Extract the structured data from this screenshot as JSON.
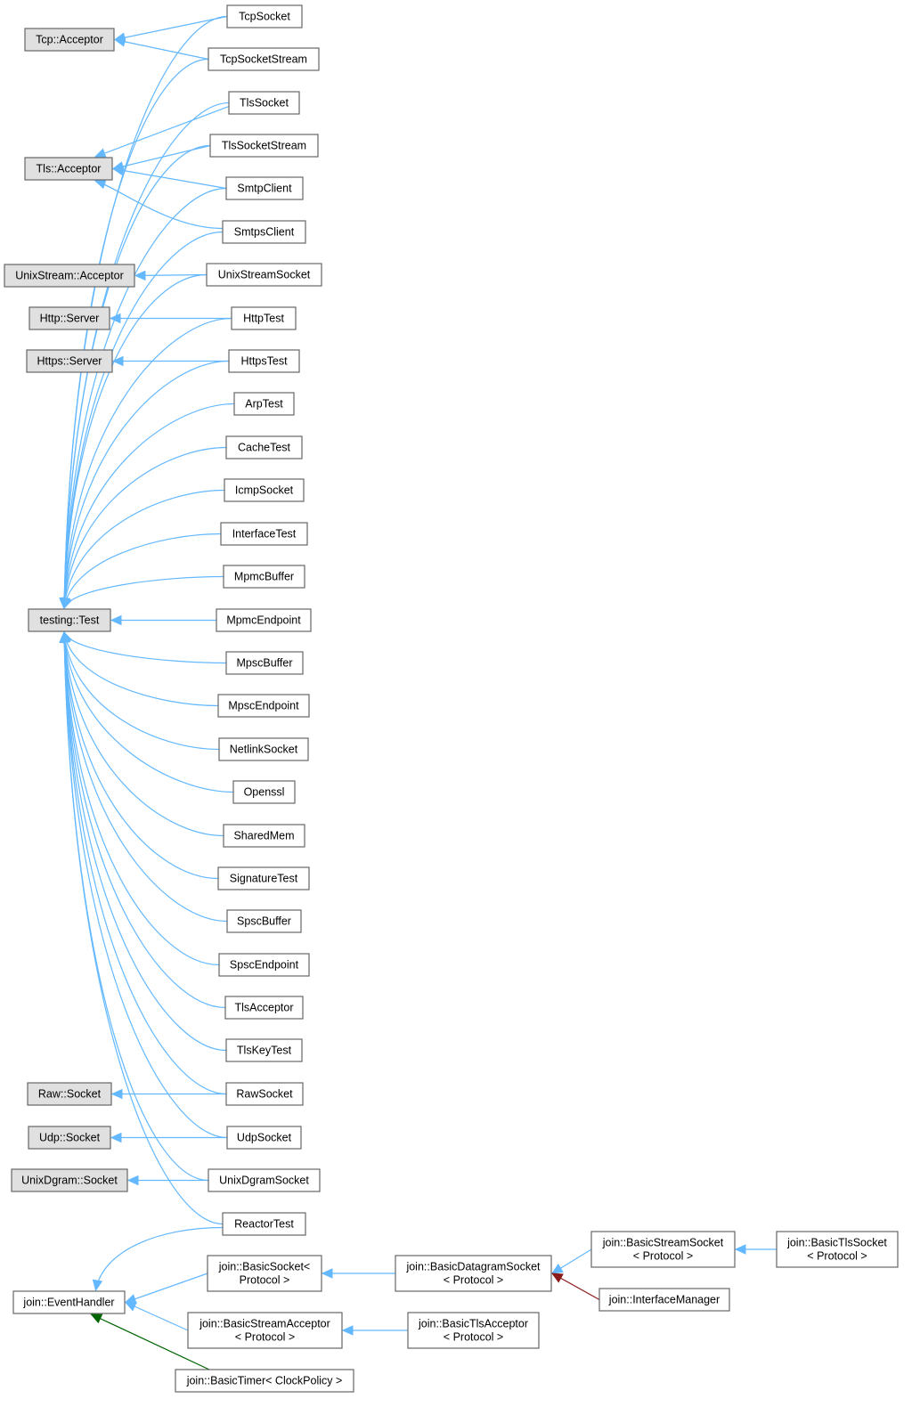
{
  "colors": {
    "external_fill": "#e0e0e0",
    "class_fill": "#ffffff",
    "border": "#666666",
    "inheritance_edge": "#63b8ff",
    "usage_edge": "#8b1a1a",
    "template_edge": "#006400"
  },
  "nodes": [
    {
      "id": "tcp_acceptor",
      "lines": [
        "Tcp::Acceptor"
      ],
      "external": true
    },
    {
      "id": "tls_acceptor",
      "lines": [
        "Tls::Acceptor"
      ],
      "external": true
    },
    {
      "id": "unixstream_acceptor",
      "lines": [
        "UnixStream::Acceptor"
      ],
      "external": true
    },
    {
      "id": "http_server",
      "lines": [
        "Http::Server"
      ],
      "external": true
    },
    {
      "id": "https_server",
      "lines": [
        "Https::Server"
      ],
      "external": true
    },
    {
      "id": "testing_test",
      "lines": [
        "testing::Test"
      ],
      "external": true
    },
    {
      "id": "raw_socket",
      "lines": [
        "Raw::Socket"
      ],
      "external": true
    },
    {
      "id": "udp_socket",
      "lines": [
        "Udp::Socket"
      ],
      "external": true
    },
    {
      "id": "unixdgram_socket",
      "lines": [
        "UnixDgram::Socket"
      ],
      "external": true
    },
    {
      "id": "event_handler",
      "lines": [
        "join::EventHandler"
      ],
      "external": false
    },
    {
      "id": "TcpSocket",
      "lines": [
        "TcpSocket"
      ],
      "external": false
    },
    {
      "id": "TcpSocketStream",
      "lines": [
        "TcpSocketStream"
      ],
      "external": false
    },
    {
      "id": "TlsSocket",
      "lines": [
        "TlsSocket"
      ],
      "external": false
    },
    {
      "id": "TlsSocketStream",
      "lines": [
        "TlsSocketStream"
      ],
      "external": false
    },
    {
      "id": "SmtpClient",
      "lines": [
        "SmtpClient"
      ],
      "external": false
    },
    {
      "id": "SmtpsClient",
      "lines": [
        "SmtpsClient"
      ],
      "external": false
    },
    {
      "id": "UnixStreamSocket",
      "lines": [
        "UnixStreamSocket"
      ],
      "external": false
    },
    {
      "id": "HttpTest",
      "lines": [
        "HttpTest"
      ],
      "external": false
    },
    {
      "id": "HttpsTest",
      "lines": [
        "HttpsTest"
      ],
      "external": false
    },
    {
      "id": "ArpTest",
      "lines": [
        "ArpTest"
      ],
      "external": false
    },
    {
      "id": "CacheTest",
      "lines": [
        "CacheTest"
      ],
      "external": false
    },
    {
      "id": "IcmpSocket",
      "lines": [
        "IcmpSocket"
      ],
      "external": false
    },
    {
      "id": "InterfaceTest",
      "lines": [
        "InterfaceTest"
      ],
      "external": false
    },
    {
      "id": "MpmcBuffer",
      "lines": [
        "MpmcBuffer"
      ],
      "external": false
    },
    {
      "id": "MpmcEndpoint",
      "lines": [
        "MpmcEndpoint"
      ],
      "external": false
    },
    {
      "id": "MpscBuffer",
      "lines": [
        "MpscBuffer"
      ],
      "external": false
    },
    {
      "id": "MpscEndpoint",
      "lines": [
        "MpscEndpoint"
      ],
      "external": false
    },
    {
      "id": "NetlinkSocket",
      "lines": [
        "NetlinkSocket"
      ],
      "external": false
    },
    {
      "id": "Openssl",
      "lines": [
        "Openssl"
      ],
      "external": false
    },
    {
      "id": "SharedMem",
      "lines": [
        "SharedMem"
      ],
      "external": false
    },
    {
      "id": "SignatureTest",
      "lines": [
        "SignatureTest"
      ],
      "external": false
    },
    {
      "id": "SpscBuffer",
      "lines": [
        "SpscBuffer"
      ],
      "external": false
    },
    {
      "id": "SpscEndpoint",
      "lines": [
        "SpscEndpoint"
      ],
      "external": false
    },
    {
      "id": "TlsAcceptor",
      "lines": [
        "TlsAcceptor"
      ],
      "external": false
    },
    {
      "id": "TlsKeyTest",
      "lines": [
        "TlsKeyTest"
      ],
      "external": false
    },
    {
      "id": "RawSocket",
      "lines": [
        "RawSocket"
      ],
      "external": false
    },
    {
      "id": "UdpSocket",
      "lines": [
        "UdpSocket"
      ],
      "external": false
    },
    {
      "id": "UnixDgramSocket",
      "lines": [
        "UnixDgramSocket"
      ],
      "external": false
    },
    {
      "id": "ReactorTest",
      "lines": [
        "ReactorTest"
      ],
      "external": false
    },
    {
      "id": "basic_socket",
      "lines": [
        "join::BasicSocket<",
        "Protocol >"
      ],
      "external": false
    },
    {
      "id": "basic_stream_acceptor",
      "lines": [
        "join::BasicStreamAcceptor",
        "< Protocol >"
      ],
      "external": false
    },
    {
      "id": "basic_timer",
      "lines": [
        "join::BasicTimer< ClockPolicy >"
      ],
      "external": false
    },
    {
      "id": "basic_datagram_socket",
      "lines": [
        "join::BasicDatagramSocket",
        "< Protocol >"
      ],
      "external": false
    },
    {
      "id": "basic_tls_acceptor",
      "lines": [
        "join::BasicTlsAcceptor",
        "< Protocol >"
      ],
      "external": false
    },
    {
      "id": "basic_stream_socket",
      "lines": [
        "join::BasicStreamSocket",
        "< Protocol >"
      ],
      "external": false
    },
    {
      "id": "interface_manager",
      "lines": [
        "join::InterfaceManager"
      ],
      "external": false
    },
    {
      "id": "basic_tls_socket",
      "lines": [
        "join::BasicTlsSocket",
        "< Protocol >"
      ],
      "external": false
    }
  ],
  "edges": [
    {
      "from": "TcpSocket",
      "to": "tcp_acceptor",
      "kind": "inheritance"
    },
    {
      "from": "TcpSocketStream",
      "to": "tcp_acceptor",
      "kind": "inheritance"
    },
    {
      "from": "TlsSocket",
      "to": "tls_acceptor",
      "kind": "inheritance"
    },
    {
      "from": "TlsSocketStream",
      "to": "tls_acceptor",
      "kind": "inheritance"
    },
    {
      "from": "SmtpClient",
      "to": "tls_acceptor",
      "kind": "inheritance"
    },
    {
      "from": "SmtpsClient",
      "to": "tls_acceptor",
      "kind": "inheritance"
    },
    {
      "from": "UnixStreamSocket",
      "to": "unixstream_acceptor",
      "kind": "inheritance"
    },
    {
      "from": "HttpTest",
      "to": "http_server",
      "kind": "inheritance"
    },
    {
      "from": "HttpsTest",
      "to": "https_server",
      "kind": "inheritance"
    },
    {
      "from": "RawSocket",
      "to": "raw_socket",
      "kind": "inheritance"
    },
    {
      "from": "UdpSocket",
      "to": "udp_socket",
      "kind": "inheritance"
    },
    {
      "from": "UnixDgramSocket",
      "to": "unixdgram_socket",
      "kind": "inheritance"
    },
    {
      "from": "TcpSocket",
      "to": "testing_test",
      "kind": "inheritance"
    },
    {
      "from": "TcpSocketStream",
      "to": "testing_test",
      "kind": "inheritance"
    },
    {
      "from": "TlsSocket",
      "to": "testing_test",
      "kind": "inheritance"
    },
    {
      "from": "TlsSocketStream",
      "to": "testing_test",
      "kind": "inheritance"
    },
    {
      "from": "SmtpClient",
      "to": "testing_test",
      "kind": "inheritance"
    },
    {
      "from": "SmtpsClient",
      "to": "testing_test",
      "kind": "inheritance"
    },
    {
      "from": "UnixStreamSocket",
      "to": "testing_test",
      "kind": "inheritance"
    },
    {
      "from": "HttpTest",
      "to": "testing_test",
      "kind": "inheritance"
    },
    {
      "from": "HttpsTest",
      "to": "testing_test",
      "kind": "inheritance"
    },
    {
      "from": "ArpTest",
      "to": "testing_test",
      "kind": "inheritance"
    },
    {
      "from": "CacheTest",
      "to": "testing_test",
      "kind": "inheritance"
    },
    {
      "from": "IcmpSocket",
      "to": "testing_test",
      "kind": "inheritance"
    },
    {
      "from": "InterfaceTest",
      "to": "testing_test",
      "kind": "inheritance"
    },
    {
      "from": "MpmcBuffer",
      "to": "testing_test",
      "kind": "inheritance"
    },
    {
      "from": "MpmcEndpoint",
      "to": "testing_test",
      "kind": "inheritance"
    },
    {
      "from": "MpscBuffer",
      "to": "testing_test",
      "kind": "inheritance"
    },
    {
      "from": "MpscEndpoint",
      "to": "testing_test",
      "kind": "inheritance"
    },
    {
      "from": "NetlinkSocket",
      "to": "testing_test",
      "kind": "inheritance"
    },
    {
      "from": "Openssl",
      "to": "testing_test",
      "kind": "inheritance"
    },
    {
      "from": "SharedMem",
      "to": "testing_test",
      "kind": "inheritance"
    },
    {
      "from": "SignatureTest",
      "to": "testing_test",
      "kind": "inheritance"
    },
    {
      "from": "SpscBuffer",
      "to": "testing_test",
      "kind": "inheritance"
    },
    {
      "from": "SpscEndpoint",
      "to": "testing_test",
      "kind": "inheritance"
    },
    {
      "from": "TlsAcceptor",
      "to": "testing_test",
      "kind": "inheritance"
    },
    {
      "from": "TlsKeyTest",
      "to": "testing_test",
      "kind": "inheritance"
    },
    {
      "from": "RawSocket",
      "to": "testing_test",
      "kind": "inheritance"
    },
    {
      "from": "UdpSocket",
      "to": "testing_test",
      "kind": "inheritance"
    },
    {
      "from": "UnixDgramSocket",
      "to": "testing_test",
      "kind": "inheritance"
    },
    {
      "from": "ReactorTest",
      "to": "testing_test",
      "kind": "inheritance"
    },
    {
      "from": "ReactorTest",
      "to": "event_handler",
      "kind": "inheritance"
    },
    {
      "from": "basic_socket",
      "to": "event_handler",
      "kind": "inheritance"
    },
    {
      "from": "basic_stream_acceptor",
      "to": "event_handler",
      "kind": "inheritance"
    },
    {
      "from": "basic_timer",
      "to": "event_handler",
      "kind": "template"
    },
    {
      "from": "basic_datagram_socket",
      "to": "basic_socket",
      "kind": "inheritance"
    },
    {
      "from": "basic_tls_acceptor",
      "to": "basic_stream_acceptor",
      "kind": "inheritance"
    },
    {
      "from": "basic_stream_socket",
      "to": "basic_datagram_socket",
      "kind": "inheritance"
    },
    {
      "from": "interface_manager",
      "to": "basic_datagram_socket",
      "kind": "usage"
    },
    {
      "from": "basic_tls_socket",
      "to": "basic_stream_socket",
      "kind": "inheritance"
    }
  ]
}
